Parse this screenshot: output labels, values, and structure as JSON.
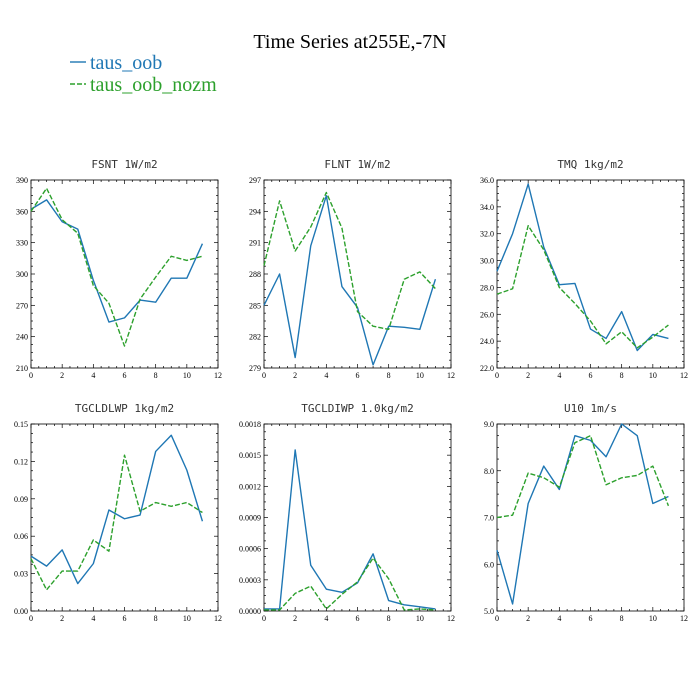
{
  "figure": {
    "title": "Time Series at255E,-7N",
    "legend": [
      {
        "name": "taus_oob",
        "color": "#1f77b4",
        "dash": "solid"
      },
      {
        "name": "taus_oob_nozm",
        "color": "#2ca02c",
        "dash": "dashed"
      }
    ]
  },
  "chart_data": [
    {
      "type": "line",
      "title": "FSNT  1W/m2",
      "xlim": [
        0,
        12
      ],
      "ylim": [
        210,
        390
      ],
      "xticks": [
        0,
        2,
        4,
        6,
        8,
        10,
        12
      ],
      "yticks": [
        210,
        240,
        270,
        300,
        330,
        360,
        390
      ],
      "ytick_labels": [
        "210",
        "240",
        "270",
        "300",
        "330",
        "360",
        "390"
      ],
      "x": [
        0,
        1,
        2,
        3,
        4,
        5,
        6,
        7,
        8,
        9,
        10,
        11
      ],
      "series": [
        {
          "name": "taus_oob",
          "values": [
            362,
            371,
            350,
            343,
            294,
            254,
            258,
            275,
            273,
            296,
            296,
            329
          ]
        },
        {
          "name": "taus_oob_nozm",
          "values": [
            360,
            382,
            352,
            339,
            289,
            272,
            231,
            276,
            297,
            317,
            313,
            317
          ]
        }
      ]
    },
    {
      "type": "line",
      "title": "FLNT  1W/m2",
      "xlim": [
        0,
        12
      ],
      "ylim": [
        279,
        297
      ],
      "xticks": [
        0,
        2,
        4,
        6,
        8,
        10,
        12
      ],
      "yticks": [
        279,
        282,
        285,
        288,
        291,
        294,
        297
      ],
      "ytick_labels": [
        "279",
        "282",
        "285",
        "288",
        "291",
        "294",
        "297"
      ],
      "x": [
        0,
        1,
        2,
        3,
        4,
        5,
        6,
        7,
        8,
        9,
        10,
        11
      ],
      "series": [
        {
          "name": "taus_oob",
          "values": [
            285.0,
            288.0,
            280.0,
            290.7,
            295.5,
            286.8,
            284.8,
            279.3,
            283.0,
            282.9,
            282.7,
            287.5
          ]
        },
        {
          "name": "taus_oob_nozm",
          "values": [
            288.8,
            295.0,
            290.2,
            292.5,
            295.8,
            292.4,
            284.4,
            283.0,
            282.7,
            287.5,
            288.2,
            286.6
          ]
        }
      ]
    },
    {
      "type": "line",
      "title": "TMQ  1kg/m2",
      "xlim": [
        0,
        12
      ],
      "ylim": [
        22.0,
        36.0
      ],
      "xticks": [
        0,
        2,
        4,
        6,
        8,
        10,
        12
      ],
      "yticks": [
        22,
        24,
        26,
        28,
        30,
        32,
        34,
        36
      ],
      "ytick_labels": [
        "22.0",
        "24.0",
        "26.0",
        "28.0",
        "30.0",
        "32.0",
        "34.0",
        "36.0"
      ],
      "x": [
        0,
        1,
        2,
        3,
        4,
        5,
        6,
        7,
        8,
        9,
        10,
        11
      ],
      "series": [
        {
          "name": "taus_oob",
          "values": [
            29.2,
            32.0,
            35.7,
            31.0,
            28.2,
            28.3,
            24.9,
            24.2,
            26.2,
            23.3,
            24.5,
            24.2
          ]
        },
        {
          "name": "taus_oob_nozm",
          "values": [
            27.5,
            27.9,
            32.6,
            30.8,
            28.0,
            26.8,
            25.5,
            23.8,
            24.7,
            23.5,
            24.3,
            25.2
          ]
        }
      ]
    },
    {
      "type": "line",
      "title": "TGCLDLWP  1kg/m2",
      "xlim": [
        0,
        12
      ],
      "ylim": [
        0.0,
        0.15
      ],
      "xticks": [
        0,
        2,
        4,
        6,
        8,
        10,
        12
      ],
      "yticks": [
        0.0,
        0.03,
        0.06,
        0.09,
        0.12,
        0.15
      ],
      "ytick_labels": [
        "0.00",
        "0.03",
        "0.06",
        "0.09",
        "0.12",
        "0.15"
      ],
      "x": [
        0,
        1,
        2,
        3,
        4,
        5,
        6,
        7,
        8,
        9,
        10,
        11
      ],
      "series": [
        {
          "name": "taus_oob",
          "values": [
            0.044,
            0.036,
            0.049,
            0.022,
            0.038,
            0.081,
            0.074,
            0.077,
            0.128,
            0.141,
            0.113,
            0.072
          ]
        },
        {
          "name": "taus_oob_nozm",
          "values": [
            0.042,
            0.017,
            0.032,
            0.032,
            0.057,
            0.048,
            0.125,
            0.08,
            0.087,
            0.084,
            0.087,
            0.079
          ]
        }
      ]
    },
    {
      "type": "line",
      "title": "TGCLDIWP  1.0kg/m2",
      "xlim": [
        0,
        12
      ],
      "ylim": [
        0.0,
        0.0018
      ],
      "xticks": [
        0,
        2,
        4,
        6,
        8,
        10,
        12
      ],
      "yticks": [
        0.0,
        0.0003,
        0.0006,
        0.0009,
        0.0012,
        0.0015,
        0.0018
      ],
      "ytick_labels": [
        "0.0000",
        "0.0003",
        "0.0006",
        "0.0009",
        "0.0012",
        "0.0015",
        "0.0018"
      ],
      "x": [
        0,
        1,
        2,
        3,
        4,
        5,
        6,
        7,
        8,
        9,
        10,
        11
      ],
      "series": [
        {
          "name": "taus_oob",
          "values": [
            2e-05,
            2e-05,
            0.00155,
            0.00044,
            0.00021,
            0.00018,
            0.00027,
            0.00055,
            0.0001,
            6e-05,
            4e-05,
            2e-05
          ]
        },
        {
          "name": "taus_oob_nozm",
          "values": [
            1e-05,
            1e-05,
            0.00017,
            0.00024,
            2e-05,
            0.00016,
            0.00028,
            0.00051,
            0.00031,
            1e-05,
            2e-05,
            1e-05
          ]
        }
      ]
    },
    {
      "type": "line",
      "title": "U10  1m/s",
      "xlim": [
        0,
        12
      ],
      "ylim": [
        5.0,
        9.0
      ],
      "xticks": [
        0,
        2,
        4,
        6,
        8,
        10,
        12
      ],
      "yticks": [
        5,
        6,
        7,
        8,
        9
      ],
      "ytick_labels": [
        "5.0",
        "6.0",
        "7.0",
        "8.0",
        "9.0"
      ],
      "x": [
        0,
        1,
        2,
        3,
        4,
        5,
        6,
        7,
        8,
        9,
        10,
        11
      ],
      "series": [
        {
          "name": "taus_oob",
          "values": [
            6.3,
            5.15,
            7.3,
            8.1,
            7.6,
            8.75,
            8.65,
            8.3,
            9.0,
            8.75,
            7.3,
            7.45
          ]
        },
        {
          "name": "taus_oob_nozm",
          "values": [
            7.0,
            7.05,
            7.95,
            7.85,
            7.65,
            8.6,
            8.75,
            7.7,
            7.85,
            7.9,
            8.1,
            7.25
          ]
        }
      ]
    }
  ]
}
